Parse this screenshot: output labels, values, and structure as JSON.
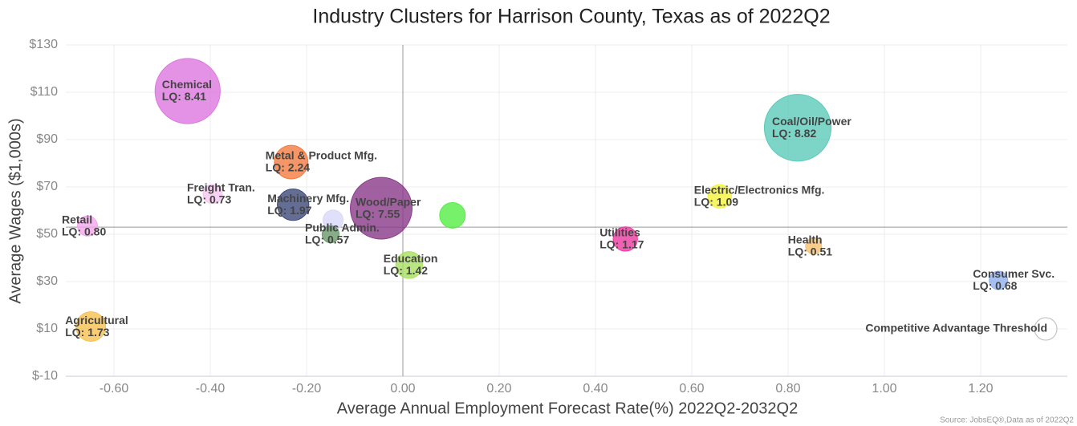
{
  "chart_data": {
    "type": "bubble",
    "title": "Industry Clusters for Harrison County, Texas as of 2022Q2",
    "x_label": "Average Annual Employment Forecast Rate(%) 2022Q2-2032Q2",
    "y_label": "Average Wages ($1,000s)",
    "source": "Source: JobsEQ®,Data as of 2022Q2",
    "categories": [
      "Chemical",
      "Coal/Oil/Power",
      "Metal & Product Mfg.",
      "Freight Tran.",
      "Machinery Mfg.",
      null,
      "Wood/Paper",
      "Retail",
      "Public Admin.",
      null,
      "Electric/Electronics Mfg.",
      "Utilities",
      "Health",
      "Education",
      "Consumer Svc.",
      "Agricultural"
    ],
    "x": [
      -0.447,
      0.82,
      -0.232,
      -0.395,
      -0.228,
      -0.145,
      -0.045,
      -0.655,
      -0.15,
      0.103,
      0.658,
      0.462,
      0.853,
      0.013,
      1.237,
      -0.648
    ],
    "values": [
      110.5,
      95,
      80.5,
      67,
      62.5,
      56,
      61,
      53.5,
      50,
      58,
      66,
      48,
      45,
      37,
      30.5,
      11
    ],
    "sizes": [
      8.41,
      8.82,
      2.24,
      0.73,
      1.97,
      0.8,
      7.55,
      0.8,
      0.57,
      1.3,
      1.09,
      1.17,
      0.51,
      1.42,
      0.68,
      1.73
    ],
    "size_labels": [
      "LQ: 8.41",
      "LQ: 8.82",
      "LQ: 2.24",
      "LQ: 0.73",
      "LQ: 1.97",
      null,
      "LQ: 7.55",
      "LQ: 0.80",
      "LQ: 0.57",
      null,
      "LQ: 1.09",
      "LQ: 1.17",
      "LQ: 0.51",
      "LQ: 1.42",
      "LQ: 0.68",
      "LQ: 1.73"
    ],
    "colors": [
      "#dd77e0",
      "#5ccab9",
      "#f47a3e",
      "#f7c6f2",
      "#3d4a7a",
      "#d8d8fa",
      "#8a3a8a",
      "#f2a6ec",
      "#6a9a6a",
      "#55ee44",
      "#f2f23e",
      "#ee3aa0",
      "#f5c070",
      "#a8e060",
      "#90b0ee",
      "#f8c050"
    ],
    "threshold": {
      "label": "Competitive Advantage Threshold",
      "x": 1.335,
      "y": 10,
      "size": 1
    },
    "x_reference": 0,
    "y_reference": 53,
    "xlim": [
      -0.7,
      1.38
    ],
    "ylim": [
      -10,
      130
    ],
    "xticks": [
      {
        "value": -0.6,
        "label": "-0.60"
      },
      {
        "value": -0.4,
        "label": "-0.40"
      },
      {
        "value": -0.2,
        "label": "-0.20"
      },
      {
        "value": 0,
        "label": "0.00"
      },
      {
        "value": 0.2,
        "label": "0.20"
      },
      {
        "value": 0.4,
        "label": "0.40"
      },
      {
        "value": 0.6,
        "label": "0.60"
      },
      {
        "value": 0.8,
        "label": "0.80"
      },
      {
        "value": 1.0,
        "label": "1.00"
      },
      {
        "value": 1.2,
        "label": "1.20"
      }
    ],
    "yticks": [
      {
        "value": -10,
        "label": "$-10"
      },
      {
        "value": 10,
        "label": "$10"
      },
      {
        "value": 30,
        "label": "$30"
      },
      {
        "value": 50,
        "label": "$50"
      },
      {
        "value": 70,
        "label": "$70"
      },
      {
        "value": 90,
        "label": "$90"
      },
      {
        "value": 110,
        "label": "$110"
      },
      {
        "value": 130,
        "label": "$130"
      }
    ],
    "grid": true
  }
}
